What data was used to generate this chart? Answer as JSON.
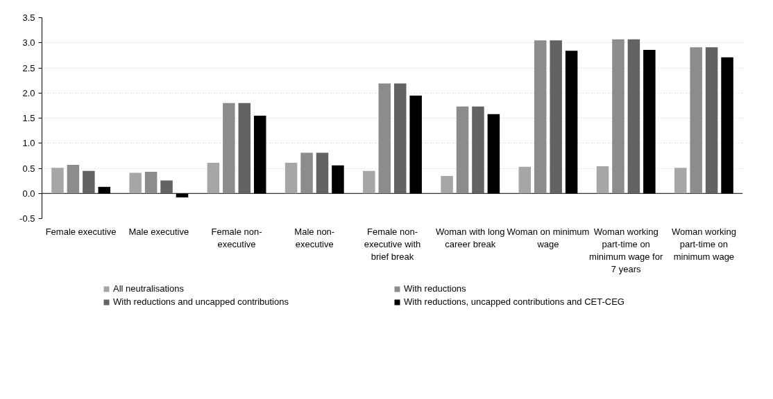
{
  "chart_data": {
    "type": "bar",
    "categories": [
      "Female executive",
      "Male executive",
      "Female non-executive",
      "Male non-executive",
      "Female non-executive with brief break",
      "Woman with long career break",
      "Woman on minimum wage",
      "Woman working part-time on minimum wage for 7 years",
      "Woman working part-time on minimum wage"
    ],
    "series": [
      {
        "name": "All neutralisations",
        "color": "#a6a6a6",
        "values": [
          0.51,
          0.41,
          0.61,
          0.61,
          0.45,
          0.35,
          0.53,
          0.54,
          0.51
        ]
      },
      {
        "name": "With reductions",
        "color": "#8c8c8c",
        "values": [
          0.57,
          0.43,
          1.8,
          0.81,
          2.19,
          1.73,
          3.05,
          3.07,
          2.91
        ]
      },
      {
        "name": "With reductions and uncapped contributions",
        "color": "#636363",
        "values": [
          0.45,
          0.26,
          1.8,
          0.81,
          2.19,
          1.73,
          3.05,
          3.07,
          2.91
        ]
      },
      {
        "name": "With reductions, uncapped contributions and CET-CEG",
        "color": "#000000",
        "values": [
          0.13,
          -0.08,
          1.55,
          0.56,
          1.95,
          1.58,
          2.84,
          2.86,
          2.71
        ]
      }
    ],
    "ylim": [
      -0.5,
      3.5
    ],
    "yticks": [
      -0.5,
      {
        "value": 0,
        "label": "0.0"
      },
      0.5,
      {
        "value": 1,
        "label": "1.0"
      },
      1.5,
      {
        "value": 2,
        "label": "2.0"
      },
      2.5,
      {
        "value": 3,
        "label": "3.0"
      },
      3.5
    ],
    "grid": "y",
    "legend": "bottom"
  }
}
